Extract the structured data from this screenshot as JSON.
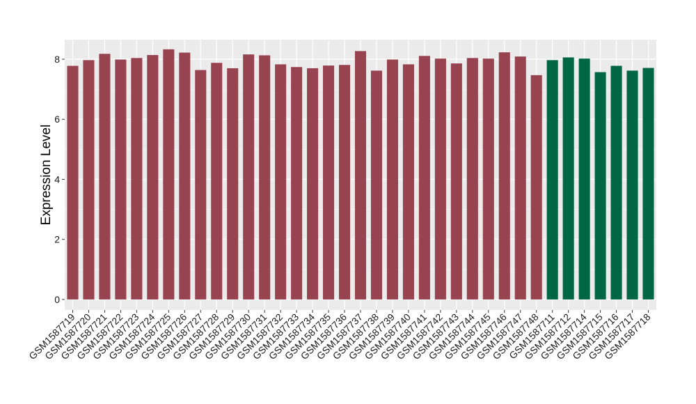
{
  "chart_data": {
    "type": "bar",
    "xlabel": "",
    "ylabel": "Expression Level",
    "ylim": [
      -0.35,
      8.65
    ],
    "yticks": [
      0,
      2,
      4,
      6,
      8
    ],
    "grid": true,
    "legend": "none",
    "colors": {
      "group_a": "#984350",
      "group_b": "#006643",
      "panel_bg": "#ebebeb",
      "grid": "#ffffff"
    },
    "categories": [
      "GSM1587719",
      "GSM1587720",
      "GSM1587721",
      "GSM1587722",
      "GSM1587723",
      "GSM1587724",
      "GSM1587725",
      "GSM1587726",
      "GSM1587727",
      "GSM1587728",
      "GSM1587729",
      "GSM1587730",
      "GSM1587731",
      "GSM1587732",
      "GSM1587733",
      "GSM1587734",
      "GSM1587735",
      "GSM1587736",
      "GSM1587737",
      "GSM1587738",
      "GSM1587739",
      "GSM1587740",
      "GSM1587741",
      "GSM1587742",
      "GSM1587743",
      "GSM1587744",
      "GSM1587745",
      "GSM1587746",
      "GSM1587747",
      "GSM1587748",
      "GSM1587711",
      "GSM1587712",
      "GSM1587714",
      "GSM1587715",
      "GSM1587716",
      "GSM1587717",
      "GSM1587718"
    ],
    "values": [
      7.78,
      7.97,
      8.18,
      7.99,
      8.04,
      8.14,
      8.33,
      8.22,
      7.64,
      7.88,
      7.7,
      8.16,
      8.13,
      7.83,
      7.74,
      7.7,
      7.79,
      7.81,
      8.27,
      7.62,
      7.99,
      7.83,
      8.11,
      8.02,
      7.86,
      8.04,
      8.02,
      8.23,
      8.09,
      7.47,
      7.97,
      8.06,
      8.02,
      7.57,
      7.78,
      7.62,
      7.71
    ],
    "groups": [
      "a",
      "a",
      "a",
      "a",
      "a",
      "a",
      "a",
      "a",
      "a",
      "a",
      "a",
      "a",
      "a",
      "a",
      "a",
      "a",
      "a",
      "a",
      "a",
      "a",
      "a",
      "a",
      "a",
      "a",
      "a",
      "a",
      "a",
      "a",
      "a",
      "a",
      "b",
      "b",
      "b",
      "b",
      "b",
      "b",
      "b"
    ]
  }
}
